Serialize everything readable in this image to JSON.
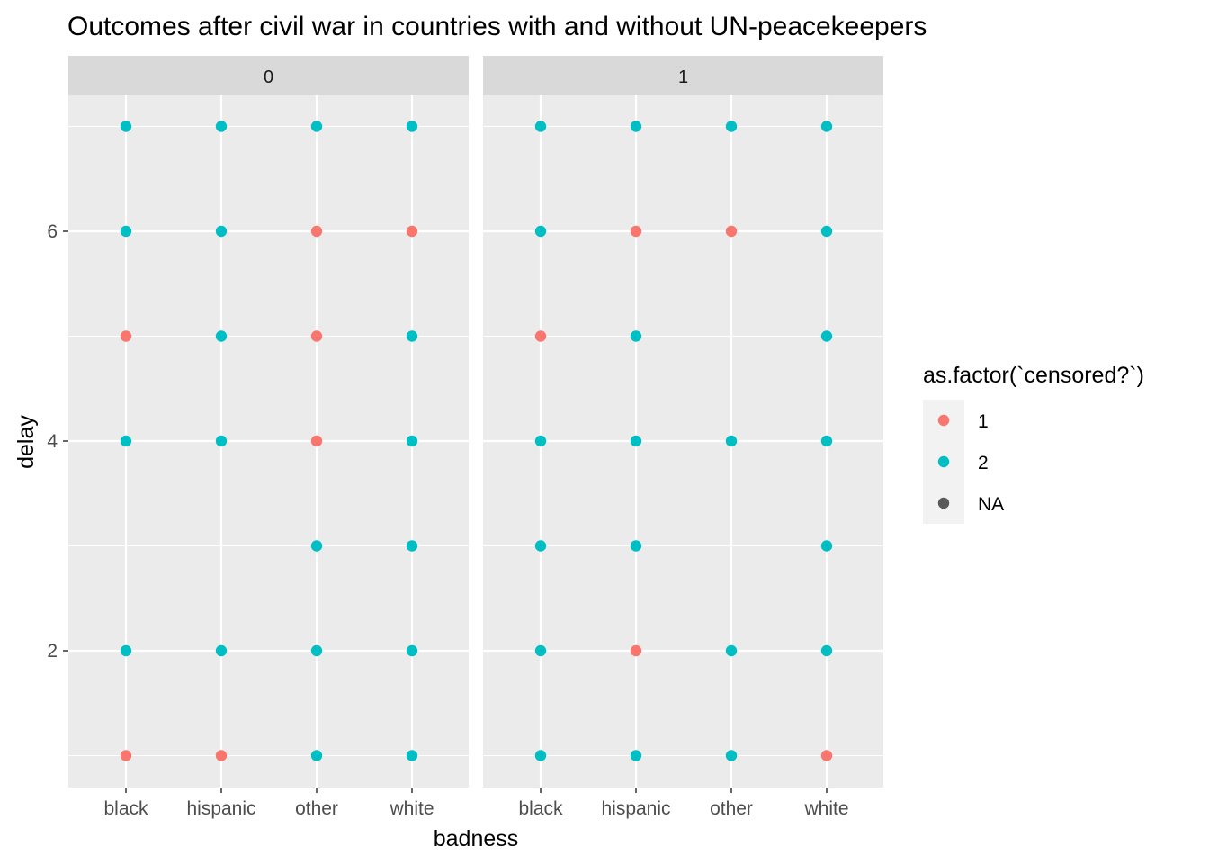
{
  "chart_data": {
    "type": "scatter",
    "title": "Outcomes after civil war in countries with and without UN-peacekeepers",
    "xlabel": "badness",
    "ylabel": "delay",
    "categories": [
      "black",
      "hispanic",
      "other",
      "white"
    ],
    "yticks": [
      2,
      4,
      6
    ],
    "ylim": [
      0.7,
      7.3
    ],
    "grid": true,
    "legend": {
      "title": "as.factor(`censored?`)",
      "placement": "right",
      "entries": [
        {
          "label": "1",
          "color": "#F8766D"
        },
        {
          "label": "2",
          "color": "#00BFC4"
        },
        {
          "label": "NA",
          "color": "#595959"
        }
      ]
    },
    "panels": [
      {
        "label": "0",
        "points": [
          {
            "x": "black",
            "y": 7,
            "group": "2"
          },
          {
            "x": "black",
            "y": 6,
            "group": "2"
          },
          {
            "x": "black",
            "y": 5,
            "group": "1"
          },
          {
            "x": "black",
            "y": 4,
            "group": "2"
          },
          {
            "x": "black",
            "y": 2,
            "group": "2"
          },
          {
            "x": "black",
            "y": 1,
            "group": "1"
          },
          {
            "x": "hispanic",
            "y": 7,
            "group": "2"
          },
          {
            "x": "hispanic",
            "y": 6,
            "group": "2"
          },
          {
            "x": "hispanic",
            "y": 5,
            "group": "2"
          },
          {
            "x": "hispanic",
            "y": 4,
            "group": "2"
          },
          {
            "x": "hispanic",
            "y": 2,
            "group": "2"
          },
          {
            "x": "hispanic",
            "y": 1,
            "group": "1"
          },
          {
            "x": "other",
            "y": 7,
            "group": "2"
          },
          {
            "x": "other",
            "y": 6,
            "group": "1"
          },
          {
            "x": "other",
            "y": 5,
            "group": "1"
          },
          {
            "x": "other",
            "y": 4,
            "group": "1"
          },
          {
            "x": "other",
            "y": 3,
            "group": "2"
          },
          {
            "x": "other",
            "y": 2,
            "group": "2"
          },
          {
            "x": "other",
            "y": 1,
            "group": "2"
          },
          {
            "x": "white",
            "y": 7,
            "group": "2"
          },
          {
            "x": "white",
            "y": 6,
            "group": "1"
          },
          {
            "x": "white",
            "y": 5,
            "group": "2"
          },
          {
            "x": "white",
            "y": 4,
            "group": "2"
          },
          {
            "x": "white",
            "y": 3,
            "group": "2"
          },
          {
            "x": "white",
            "y": 2,
            "group": "2"
          },
          {
            "x": "white",
            "y": 1,
            "group": "2"
          }
        ]
      },
      {
        "label": "1",
        "points": [
          {
            "x": "black",
            "y": 7,
            "group": "2"
          },
          {
            "x": "black",
            "y": 6,
            "group": "2"
          },
          {
            "x": "black",
            "y": 5,
            "group": "1"
          },
          {
            "x": "black",
            "y": 4,
            "group": "2"
          },
          {
            "x": "black",
            "y": 3,
            "group": "2"
          },
          {
            "x": "black",
            "y": 2,
            "group": "2"
          },
          {
            "x": "black",
            "y": 1,
            "group": "2"
          },
          {
            "x": "hispanic",
            "y": 7,
            "group": "2"
          },
          {
            "x": "hispanic",
            "y": 6,
            "group": "1"
          },
          {
            "x": "hispanic",
            "y": 5,
            "group": "2"
          },
          {
            "x": "hispanic",
            "y": 4,
            "group": "2"
          },
          {
            "x": "hispanic",
            "y": 3,
            "group": "2"
          },
          {
            "x": "hispanic",
            "y": 2,
            "group": "1"
          },
          {
            "x": "hispanic",
            "y": 1,
            "group": "2"
          },
          {
            "x": "other",
            "y": 7,
            "group": "2"
          },
          {
            "x": "other",
            "y": 6,
            "group": "1"
          },
          {
            "x": "other",
            "y": 4,
            "group": "2"
          },
          {
            "x": "other",
            "y": 2,
            "group": "2"
          },
          {
            "x": "other",
            "y": 1,
            "group": "2"
          },
          {
            "x": "white",
            "y": 7,
            "group": "2"
          },
          {
            "x": "white",
            "y": 6,
            "group": "2"
          },
          {
            "x": "white",
            "y": 5,
            "group": "2"
          },
          {
            "x": "white",
            "y": 4,
            "group": "2"
          },
          {
            "x": "white",
            "y": 3,
            "group": "2"
          },
          {
            "x": "white",
            "y": 2,
            "group": "2"
          },
          {
            "x": "white",
            "y": 1,
            "group": "1"
          }
        ]
      }
    ]
  }
}
